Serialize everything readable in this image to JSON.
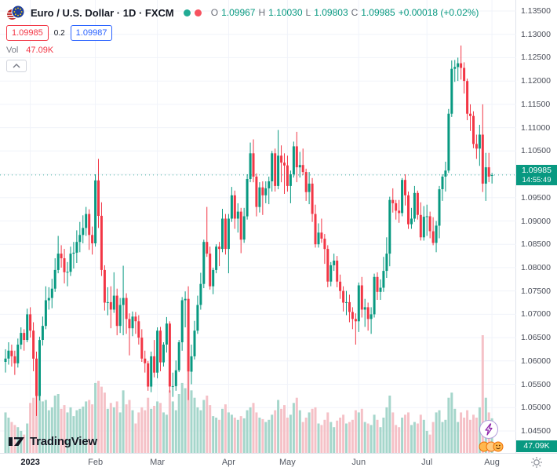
{
  "header": {
    "symbol_title": "Euro / U.S. Dollar · 1D · FXCM",
    "ohlc": {
      "o_label": "O",
      "o_value": "1.09967",
      "h_label": "H",
      "h_value": "1.10030",
      "l_label": "L",
      "l_value": "1.09803",
      "c_label": "C",
      "c_value": "1.09985",
      "change_value": "+0.00018 (+0.02%)"
    },
    "sell_price": "1.09985",
    "spread": "0.2",
    "buy_price": "1.09987",
    "vol_label": "Vol",
    "vol_value": "47.09K"
  },
  "price_label": {
    "price": "1.09985",
    "countdown": "14:55:49"
  },
  "volume_axis_label": "47.09K",
  "footer": {
    "logo_text": "TradingView"
  },
  "colors": {
    "up": "#089981",
    "down": "#f23645",
    "volume_up": "#a5d6cb",
    "volume_down": "#f5c1c7",
    "grid": "#f0f3fa",
    "axis_text": "#4a4e59",
    "buy_accent": "#2962ff",
    "sell_accent": "#f23645",
    "label_bg": "#089981"
  },
  "chart_data": {
    "type": "candlestick",
    "title": "Euro / U.S. Dollar",
    "exchange": "FXCM",
    "timeframe": "1D",
    "legend_position": "top-left",
    "grid": true,
    "price_axis": {
      "min": 1.045,
      "max": 1.135,
      "ticks": [
        1.135,
        1.13,
        1.125,
        1.12,
        1.115,
        1.11,
        1.105,
        1.1,
        1.095,
        1.09,
        1.085,
        1.08,
        1.075,
        1.07,
        1.065,
        1.06,
        1.055,
        1.05,
        1.045
      ]
    },
    "last_price": 1.09985,
    "volume_axis_max": 160,
    "volume_last_display": "47.09K",
    "months": [
      {
        "label": "2023",
        "candle_index": 8,
        "bold": true
      },
      {
        "label": "Feb",
        "candle_index": 29
      },
      {
        "label": "Mar",
        "candle_index": 49
      },
      {
        "label": "Apr",
        "candle_index": 72
      },
      {
        "label": "May",
        "candle_index": 91
      },
      {
        "label": "Jun",
        "candle_index": 114
      },
      {
        "label": "Jul",
        "candle_index": 136
      },
      {
        "label": "Aug",
        "candle_index": 157
      }
    ],
    "candles": [
      [
        1.0598,
        1.0625,
        1.0575,
        1.0605,
        55
      ],
      [
        1.0605,
        1.064,
        1.0592,
        1.0622,
        48
      ],
      [
        1.0622,
        1.0635,
        1.0588,
        1.061,
        42
      ],
      [
        1.061,
        1.0622,
        1.057,
        1.0595,
        38
      ],
      [
        1.0595,
        1.0648,
        1.0586,
        1.0635,
        35
      ],
      [
        1.0635,
        1.0672,
        1.0625,
        1.066,
        30
      ],
      [
        1.066,
        1.0668,
        1.0622,
        1.0645,
        25
      ],
      [
        1.0645,
        1.0712,
        1.064,
        1.07,
        40
      ],
      [
        1.07,
        1.0715,
        1.065,
        1.0665,
        68
      ],
      [
        1.0665,
        1.0683,
        1.0578,
        1.0605,
        75
      ],
      [
        1.0605,
        1.062,
        1.0482,
        1.0525,
        88
      ],
      [
        1.0525,
        1.0652,
        1.0515,
        1.0645,
        92
      ],
      [
        1.0645,
        1.0695,
        1.0633,
        1.0675,
        70
      ],
      [
        1.0675,
        1.076,
        1.0668,
        1.073,
        72
      ],
      [
        1.073,
        1.0758,
        1.071,
        1.0735,
        58
      ],
      [
        1.0735,
        1.0776,
        1.0713,
        1.0755,
        62
      ],
      [
        1.0755,
        1.082,
        1.0748,
        1.0795,
        78
      ],
      [
        1.0795,
        1.0868,
        1.0788,
        1.083,
        80
      ],
      [
        1.083,
        1.0848,
        1.08,
        1.082,
        60
      ],
      [
        1.082,
        1.084,
        1.0766,
        1.079,
        65
      ],
      [
        1.079,
        1.0812,
        1.076,
        1.0791,
        55
      ],
      [
        1.0791,
        1.0845,
        1.0782,
        1.083,
        62
      ],
      [
        1.083,
        1.0855,
        1.0798,
        1.0832,
        50
      ],
      [
        1.0832,
        1.088,
        1.081,
        1.0855,
        58
      ],
      [
        1.0855,
        1.0898,
        1.0833,
        1.087,
        60
      ],
      [
        1.087,
        1.0912,
        1.0852,
        1.0885,
        63
      ],
      [
        1.0885,
        1.093,
        1.0868,
        1.0915,
        70
      ],
      [
        1.0915,
        1.0925,
        1.0838,
        1.087,
        72
      ],
      [
        1.087,
        1.0888,
        1.0828,
        1.0852,
        66
      ],
      [
        1.0852,
        1.1,
        1.0845,
        1.0987,
        95
      ],
      [
        1.0987,
        1.1033,
        1.0885,
        1.0911,
        98
      ],
      [
        1.0911,
        1.094,
        1.0782,
        1.0795,
        90
      ],
      [
        1.0795,
        1.0805,
        1.0708,
        1.0725,
        82
      ],
      [
        1.0725,
        1.0758,
        1.0698,
        1.0726,
        60
      ],
      [
        1.0726,
        1.076,
        1.067,
        1.071,
        68
      ],
      [
        1.071,
        1.079,
        1.0703,
        1.074,
        62
      ],
      [
        1.074,
        1.0755,
        1.0655,
        1.0675,
        70
      ],
      [
        1.0675,
        1.0735,
        1.066,
        1.072,
        55
      ],
      [
        1.072,
        1.0804,
        1.0655,
        1.0735,
        85
      ],
      [
        1.0735,
        1.0745,
        1.0658,
        1.069,
        66
      ],
      [
        1.069,
        1.0702,
        1.0612,
        1.067,
        72
      ],
      [
        1.067,
        1.0706,
        1.0653,
        1.0695,
        58
      ],
      [
        1.0695,
        1.0705,
        1.0658,
        1.0685,
        40
      ],
      [
        1.0685,
        1.0698,
        1.0635,
        1.065,
        55
      ],
      [
        1.065,
        1.0668,
        1.0598,
        1.0605,
        62
      ],
      [
        1.0605,
        1.0622,
        1.0575,
        1.0595,
        58
      ],
      [
        1.0595,
        1.06,
        1.0536,
        1.0545,
        75
      ],
      [
        1.0545,
        1.062,
        1.0533,
        1.061,
        60
      ],
      [
        1.061,
        1.0645,
        1.0565,
        1.0575,
        64
      ],
      [
        1.0575,
        1.0672,
        1.0563,
        1.0665,
        70
      ],
      [
        1.0665,
        1.0673,
        1.0578,
        1.0597,
        68
      ],
      [
        1.0597,
        1.064,
        1.0588,
        1.0635,
        55
      ],
      [
        1.0635,
        1.0694,
        1.0618,
        1.068,
        52
      ],
      [
        1.068,
        1.0685,
        1.0532,
        1.0545,
        85
      ],
      [
        1.0545,
        1.0575,
        1.0523,
        1.0546,
        70
      ],
      [
        1.0546,
        1.0601,
        1.0536,
        1.058,
        58
      ],
      [
        1.058,
        1.0645,
        1.0576,
        1.064,
        80
      ],
      [
        1.064,
        1.0737,
        1.0622,
        1.073,
        95
      ],
      [
        1.073,
        1.0749,
        1.0672,
        1.0733,
        88
      ],
      [
        1.0733,
        1.076,
        1.0516,
        1.0577,
        110
      ],
      [
        1.0577,
        1.0635,
        1.055,
        1.061,
        85
      ],
      [
        1.061,
        1.0686,
        1.0603,
        1.0665,
        75
      ],
      [
        1.0665,
        1.074,
        1.0658,
        1.072,
        62
      ],
      [
        1.072,
        1.0789,
        1.071,
        1.0765,
        58
      ],
      [
        1.0765,
        1.086,
        1.0756,
        1.0855,
        72
      ],
      [
        1.0855,
        1.093,
        1.0823,
        1.083,
        78
      ],
      [
        1.083,
        1.0845,
        1.0753,
        1.076,
        65
      ],
      [
        1.076,
        1.08,
        1.0743,
        1.0795,
        50
      ],
      [
        1.0795,
        1.085,
        1.0788,
        1.0845,
        48
      ],
      [
        1.0845,
        1.0855,
        1.0803,
        1.084,
        45
      ],
      [
        1.084,
        1.0926,
        1.0833,
        1.0905,
        60
      ],
      [
        1.0905,
        1.0915,
        1.0828,
        1.084,
        66
      ],
      [
        1.084,
        1.0915,
        1.0788,
        1.0905,
        55
      ],
      [
        1.0905,
        1.0973,
        1.0898,
        1.0955,
        52
      ],
      [
        1.0955,
        1.0965,
        1.0883,
        1.0905,
        48
      ],
      [
        1.0905,
        1.0938,
        1.0875,
        1.092,
        45
      ],
      [
        1.092,
        1.0928,
        1.0831,
        1.086,
        50
      ],
      [
        1.086,
        1.0928,
        1.0853,
        1.091,
        47
      ],
      [
        1.091,
        1.1,
        1.0903,
        1.099,
        58
      ],
      [
        1.099,
        1.1068,
        1.0983,
        1.1045,
        62
      ],
      [
        1.1045,
        1.1075,
        1.0983,
        1.0995,
        68
      ],
      [
        1.0995,
        1.1002,
        1.091,
        1.093,
        55
      ],
      [
        1.093,
        1.0983,
        1.0918,
        1.0972,
        48
      ],
      [
        1.0972,
        1.0985,
        1.0913,
        1.0955,
        46
      ],
      [
        1.0955,
        1.0985,
        1.0938,
        1.097,
        42
      ],
      [
        1.097,
        1.0995,
        1.0936,
        1.0985,
        45
      ],
      [
        1.0985,
        1.105,
        1.0963,
        1.1045,
        52
      ],
      [
        1.1045,
        1.1055,
        1.0963,
        1.0975,
        58
      ],
      [
        1.0975,
        1.1095,
        1.0968,
        1.104,
        72
      ],
      [
        1.104,
        1.1062,
        1.0983,
        1.1025,
        60
      ],
      [
        1.1025,
        1.1045,
        1.0958,
        1.1019,
        65
      ],
      [
        1.1019,
        1.104,
        1.0963,
        1.0975,
        48
      ],
      [
        1.0975,
        1.1008,
        1.0938,
        1.1,
        52
      ],
      [
        1.1,
        1.107,
        1.0993,
        1.106,
        68
      ],
      [
        1.106,
        1.1091,
        1.0983,
        1.1015,
        75
      ],
      [
        1.1015,
        1.1048,
        1.0993,
        1.102,
        58
      ],
      [
        1.102,
        1.1055,
        1.0998,
        1.1005,
        42
      ],
      [
        1.1005,
        1.1012,
        1.0943,
        1.0962,
        48
      ],
      [
        1.0962,
        1.1005,
        1.0936,
        1.098,
        55
      ],
      [
        1.098,
        1.0992,
        1.0898,
        1.0915,
        60
      ],
      [
        1.0915,
        1.0935,
        1.0843,
        1.085,
        62
      ],
      [
        1.085,
        1.0895,
        1.0843,
        1.0875,
        40
      ],
      [
        1.0875,
        1.0905,
        1.0853,
        1.0862,
        38
      ],
      [
        1.0862,
        1.0872,
        1.0808,
        1.084,
        45
      ],
      [
        1.084,
        1.0848,
        1.0758,
        1.077,
        55
      ],
      [
        1.077,
        1.0812,
        1.076,
        1.0805,
        42
      ],
      [
        1.0805,
        1.083,
        1.0793,
        1.0815,
        35
      ],
      [
        1.0815,
        1.0825,
        1.0758,
        1.077,
        44
      ],
      [
        1.077,
        1.0785,
        1.0733,
        1.075,
        48
      ],
      [
        1.075,
        1.076,
        1.0706,
        1.0725,
        52
      ],
      [
        1.0725,
        1.075,
        1.0698,
        1.0726,
        40
      ],
      [
        1.0726,
        1.0742,
        1.0683,
        1.0705,
        42
      ],
      [
        1.0705,
        1.0715,
        1.0668,
        1.069,
        45
      ],
      [
        1.069,
        1.0702,
        1.0635,
        1.0685,
        58
      ],
      [
        1.0685,
        1.0768,
        1.0662,
        1.0762,
        55
      ],
      [
        1.0762,
        1.078,
        1.0693,
        1.071,
        60
      ],
      [
        1.071,
        1.0733,
        1.0673,
        1.0715,
        42
      ],
      [
        1.0715,
        1.0725,
        1.0665,
        1.069,
        40
      ],
      [
        1.069,
        1.0715,
        1.0658,
        1.07,
        38
      ],
      [
        1.07,
        1.0787,
        1.0693,
        1.078,
        52
      ],
      [
        1.078,
        1.079,
        1.0731,
        1.0748,
        45
      ],
      [
        1.0748,
        1.0775,
        1.0731,
        1.0757,
        35
      ],
      [
        1.0757,
        1.0823,
        1.0748,
        1.0793,
        48
      ],
      [
        1.0793,
        1.0865,
        1.0778,
        1.083,
        62
      ],
      [
        1.083,
        1.0952,
        1.0803,
        1.0945,
        78
      ],
      [
        1.0945,
        1.097,
        1.0918,
        1.0938,
        55
      ],
      [
        1.0938,
        1.0945,
        1.0903,
        1.0922,
        38
      ],
      [
        1.0922,
        1.0945,
        1.0896,
        1.0917,
        35
      ],
      [
        1.0917,
        1.0992,
        1.091,
        1.0988,
        48
      ],
      [
        1.0988,
        1.1,
        1.0933,
        1.0955,
        52
      ],
      [
        1.0955,
        1.0963,
        1.0883,
        1.0893,
        55
      ],
      [
        1.0893,
        1.0928,
        1.0883,
        1.0905,
        38
      ],
      [
        1.0905,
        1.0975,
        1.0898,
        1.096,
        42
      ],
      [
        1.096,
        1.0965,
        1.0903,
        1.0913,
        40
      ],
      [
        1.0913,
        1.094,
        1.0858,
        1.0865,
        52
      ],
      [
        1.0865,
        1.0932,
        1.0858,
        1.0909,
        45
      ],
      [
        1.0909,
        1.0935,
        1.0868,
        1.091,
        30
      ],
      [
        1.091,
        1.092,
        1.0863,
        1.0878,
        25
      ],
      [
        1.0878,
        1.0908,
        1.0848,
        1.0853,
        42
      ],
      [
        1.0853,
        1.09,
        1.0833,
        1.089,
        55
      ],
      [
        1.089,
        1.0975,
        1.0863,
        1.0968,
        58
      ],
      [
        1.0968,
        1.1,
        1.0943,
        1.0995,
        42
      ],
      [
        1.0995,
        1.1027,
        1.0963,
        1.1008,
        45
      ],
      [
        1.1008,
        1.114,
        1.1003,
        1.113,
        75
      ],
      [
        1.113,
        1.1244,
        1.1123,
        1.1226,
        82
      ],
      [
        1.1226,
        1.1245,
        1.1198,
        1.123,
        60
      ],
      [
        1.123,
        1.125,
        1.12,
        1.1238,
        42
      ],
      [
        1.1238,
        1.1276,
        1.1203,
        1.1228,
        55
      ],
      [
        1.1228,
        1.124,
        1.1173,
        1.12,
        48
      ],
      [
        1.12,
        1.1205,
        1.1116,
        1.113,
        58
      ],
      [
        1.113,
        1.115,
        1.1093,
        1.1125,
        45
      ],
      [
        1.1125,
        1.1135,
        1.1056,
        1.1065,
        52
      ],
      [
        1.1065,
        1.1085,
        1.1033,
        1.1055,
        48
      ],
      [
        1.1055,
        1.1106,
        1.1018,
        1.1085,
        62
      ],
      [
        1.1085,
        1.115,
        1.0962,
        1.098,
        160
      ],
      [
        1.098,
        1.1046,
        1.0943,
        1.1015,
        75
      ],
      [
        1.1015,
        1.1046,
        1.0983,
        1.0995,
        55
      ],
      [
        1.09967,
        1.1003,
        1.09803,
        1.09985,
        47
      ]
    ]
  }
}
